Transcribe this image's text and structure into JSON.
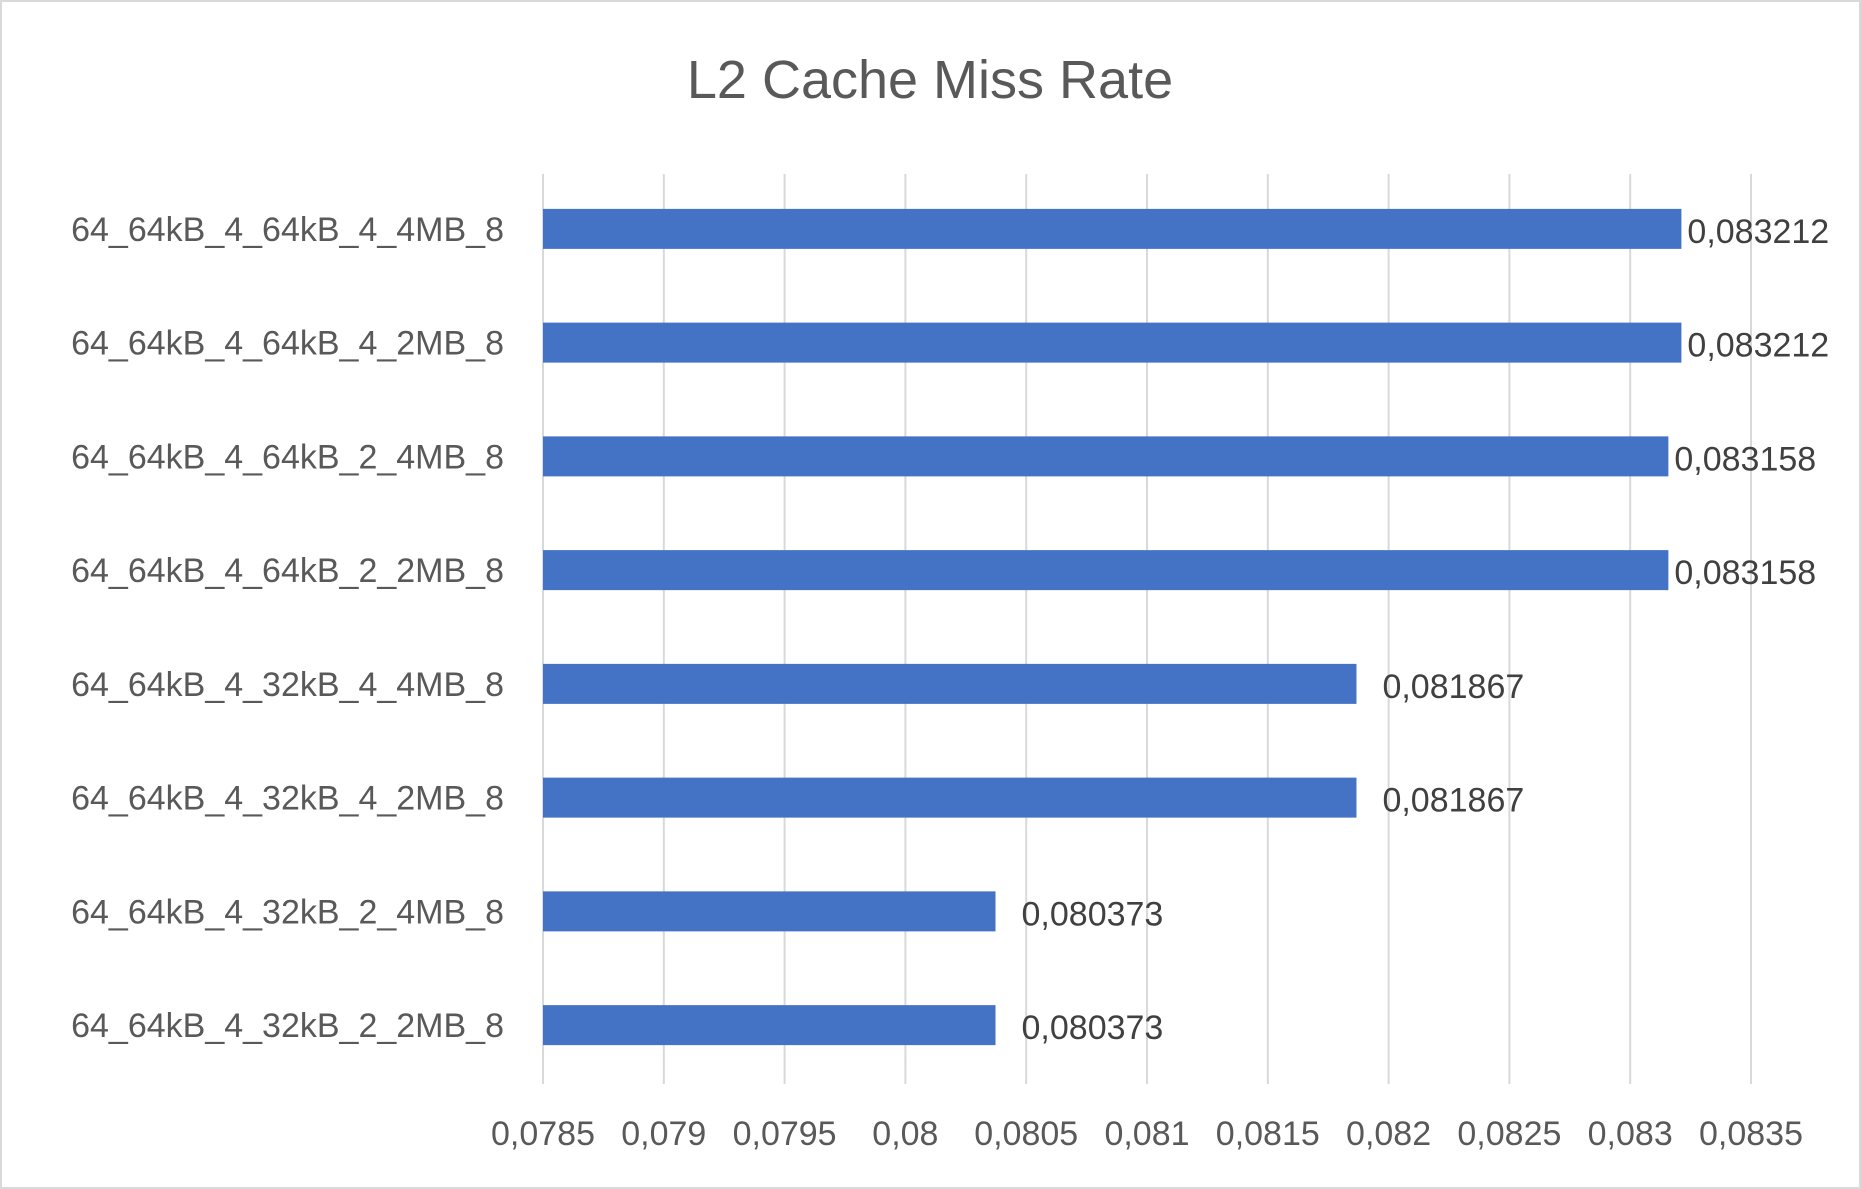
{
  "chart_data": {
    "type": "bar",
    "orientation": "horizontal",
    "title": "L2 Cache Miss Rate",
    "xlabel": "",
    "ylabel": "",
    "categories": [
      "64_64kB_4_64kB_4_4MB_8",
      "64_64kB_4_64kB_4_2MB_8",
      "64_64kB_4_64kB_2_4MB_8",
      "64_64kB_4_64kB_2_2MB_8",
      "64_64kB_4_32kB_4_4MB_8",
      "64_64kB_4_32kB_4_2MB_8",
      "64_64kB_4_32kB_2_4MB_8",
      "64_64kB_4_32kB_2_2MB_8"
    ],
    "values": [
      0.083212,
      0.083212,
      0.083158,
      0.083158,
      0.081867,
      0.081867,
      0.080373,
      0.080373
    ],
    "value_labels": [
      "0,083212",
      "0,083212",
      "0,083158",
      "0,083158",
      "0,081867",
      "0,081867",
      "0,080373",
      "0,080373"
    ],
    "xlim": [
      0.0785,
      0.0835
    ],
    "ticks": [
      0.0785,
      0.079,
      0.0795,
      0.08,
      0.0805,
      0.081,
      0.0815,
      0.082,
      0.0825,
      0.083,
      0.0835
    ],
    "tick_labels": [
      "0,0785",
      "0,079",
      "0,0795",
      "0,08",
      "0,0805",
      "0,081",
      "0,0815",
      "0,082",
      "0,0825",
      "0,083",
      "0,0835"
    ],
    "grid": true,
    "legend": "none",
    "bar_color": "#4472c4"
  }
}
